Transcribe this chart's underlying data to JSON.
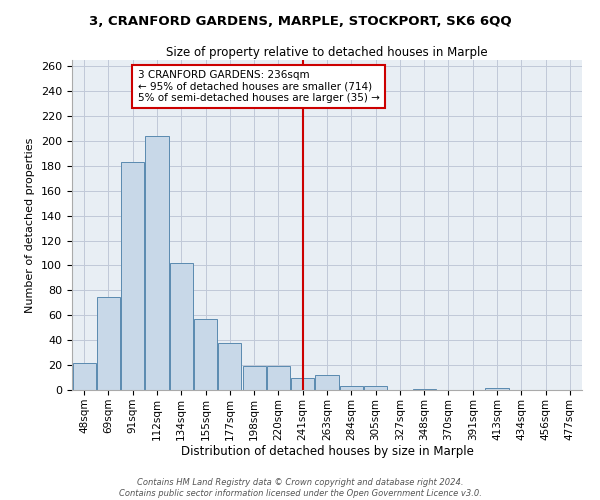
{
  "title": "3, CRANFORD GARDENS, MARPLE, STOCKPORT, SK6 6QQ",
  "subtitle": "Size of property relative to detached houses in Marple",
  "xlabel": "Distribution of detached houses by size in Marple",
  "ylabel": "Number of detached properties",
  "footer_line1": "Contains HM Land Registry data © Crown copyright and database right 2024.",
  "footer_line2": "Contains public sector information licensed under the Open Government Licence v3.0.",
  "bar_labels": [
    "48sqm",
    "69sqm",
    "91sqm",
    "112sqm",
    "134sqm",
    "155sqm",
    "177sqm",
    "198sqm",
    "220sqm",
    "241sqm",
    "263sqm",
    "284sqm",
    "305sqm",
    "327sqm",
    "348sqm",
    "370sqm",
    "391sqm",
    "413sqm",
    "434sqm",
    "456sqm",
    "477sqm"
  ],
  "bar_values": [
    22,
    75,
    183,
    204,
    102,
    57,
    38,
    19,
    19,
    10,
    12,
    3,
    3,
    0,
    1,
    0,
    0,
    2,
    0,
    0,
    0
  ],
  "bar_color": "#c8d8e8",
  "bar_edge_color": "#5a8ab0",
  "grid_color": "#c0c8d8",
  "bg_color": "#e8eef4",
  "vline_color": "#cc0000",
  "annotation_text": "3 CRANFORD GARDENS: 236sqm\n← 95% of detached houses are smaller (714)\n5% of semi-detached houses are larger (35) →",
  "annotation_box_color": "#cc0000",
  "ylim": [
    0,
    265
  ],
  "yticks": [
    0,
    20,
    40,
    60,
    80,
    100,
    120,
    140,
    160,
    180,
    200,
    220,
    240,
    260
  ],
  "title_fontsize": 9.5,
  "subtitle_fontsize": 8.5,
  "ylabel_fontsize": 8,
  "xlabel_fontsize": 8.5,
  "tick_fontsize": 8,
  "xtick_fontsize": 7.5,
  "footer_fontsize": 6.0
}
